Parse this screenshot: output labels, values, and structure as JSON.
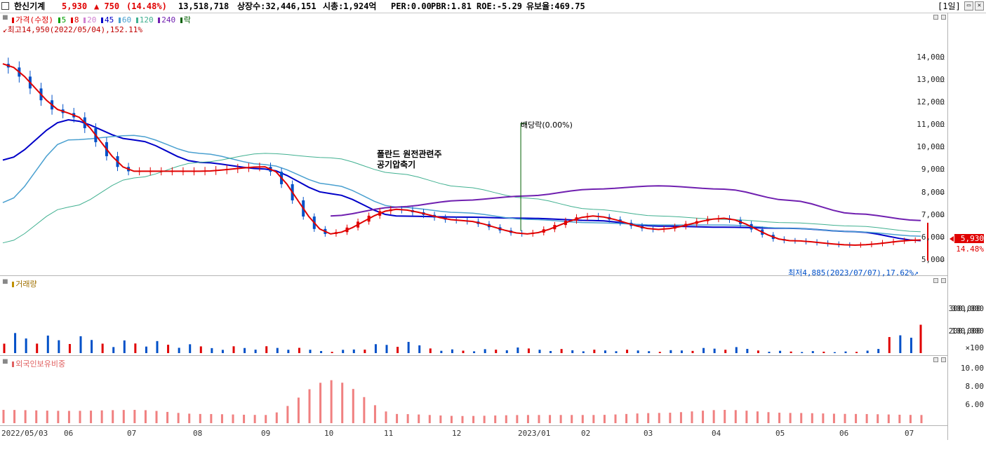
{
  "header": {
    "name": "한신기계",
    "price": "5,930",
    "change": "▲ 750",
    "change_pct": "(14.48%)",
    "volume": "13,518,718",
    "listed": "상장수:32,446,151",
    "mcap": "시총:1,924억",
    "per": "PER:0.00",
    "pbr": "PBR:1.81",
    "roe": "ROE:-5.29",
    "float": "유보율:469.75",
    "period": "[1일]",
    "colors": {
      "up": "#e00000",
      "down": "#0050c8"
    }
  },
  "legend": {
    "price": "가격(수정)",
    "ma": [
      "5",
      "8",
      "20",
      "45",
      "60",
      "120",
      "240"
    ],
    "ex": "락",
    "ma_colors": [
      "#00a000",
      "#e00000",
      "#d080d0",
      "#0000c8",
      "#4aa0d0",
      "#40b090",
      "#7020b0"
    ],
    "high_label": "최고14,950(2022/05/04),152.11%",
    "low_label": "최저4,885(2023/07/07),17.62%",
    "dividend_label": "배당락(0.00%)",
    "note_line1": "폴란드 원전관련주",
    "note_line2": "공기압축기",
    "volume_title": "거래량",
    "foreign_title": "외국인보유비중"
  },
  "price_axis": [
    "14,000",
    "13,000",
    "12,000",
    "11,000",
    "10,000",
    "9,000",
    "8,000",
    "7,000",
    "6,000",
    "5,000"
  ],
  "price_tag": {
    "price": "5,930",
    "pct": "14.48%"
  },
  "volume_axis": [
    "300,000",
    "200,000",
    "100,000",
    "×100"
  ],
  "foreign_axis": [
    "10.00",
    "8.00",
    "6.00"
  ],
  "x_axis": [
    "2022/05/03",
    "06",
    "07",
    "08",
    "09",
    "10",
    "11",
    "12",
    "2023/01",
    "02",
    "03",
    "04",
    "05",
    "06",
    "07"
  ],
  "chart_data": [
    {
      "type": "line",
      "title": "가격(수정)",
      "x": [
        "2022/05/03",
        "2022/06",
        "2022/07",
        "2022/08",
        "2022/09",
        "2022/10",
        "2022/11",
        "2022/12",
        "2023/01",
        "2023/02",
        "2023/03",
        "2023/04",
        "2023/05",
        "2023/06",
        "2023/07"
      ],
      "series": [
        {
          "name": "가격(수정)",
          "values": [
            13800,
            11600,
            9000,
            9000,
            9200,
            6200,
            7300,
            6800,
            6200,
            7000,
            6400,
            6900,
            5900,
            5700,
            5930
          ]
        },
        {
          "name": "45",
          "values": [
            9500,
            11300,
            10400,
            9400,
            9100,
            8000,
            7000,
            6950,
            6900,
            6800,
            6550,
            6500,
            6450,
            6300,
            5900
          ]
        },
        {
          "name": "60",
          "values": [
            7600,
            10400,
            10600,
            9800,
            9300,
            8400,
            7400,
            7150,
            6850,
            6700,
            6600,
            6600,
            6450,
            6300,
            6100
          ]
        },
        {
          "name": "120",
          "values": [
            5800,
            7400,
            8700,
            9400,
            9800,
            9600,
            8900,
            8300,
            7800,
            7300,
            7000,
            6850,
            6700,
            6550,
            6300
          ]
        },
        {
          "name": "240",
          "values": [
            null,
            null,
            null,
            null,
            null,
            7000,
            7400,
            7700,
            7900,
            8200,
            8350,
            8200,
            7700,
            7100,
            6800
          ]
        }
      ],
      "ylim": [
        4600,
        15400
      ],
      "high": 14950,
      "low": 4885
    },
    {
      "type": "bar",
      "title": "거래량",
      "x": [
        "2022/05/03",
        "2022/06",
        "2022/07",
        "2022/08",
        "2022/09",
        "2022/10",
        "2022/11",
        "2022/12",
        "2023/01",
        "2023/02",
        "2023/03",
        "2023/04",
        "2023/05",
        "2023/06",
        "2023/07"
      ],
      "values": [
        90000,
        65000,
        55000,
        32000,
        28000,
        12000,
        45000,
        14000,
        22000,
        14000,
        12000,
        24000,
        9000,
        6000,
        135000
      ],
      "unit": "×100",
      "ylim": [
        0,
        330000
      ]
    },
    {
      "type": "bar",
      "title": "외국인보유비중",
      "x": [
        "2022/05/03",
        "2022/06",
        "2022/07",
        "2022/08",
        "2022/09",
        "2022/10",
        "2022/11",
        "2022/12",
        "2023/01",
        "2023/02",
        "2023/03",
        "2023/04",
        "2023/05",
        "2023/06",
        "2023/07"
      ],
      "values": [
        5.8,
        5.7,
        5.8,
        5.4,
        5.3,
        8.7,
        5.4,
        5.2,
        5.3,
        5.3,
        5.5,
        5.8,
        5.5,
        5.4,
        5.3
      ],
      "ylim": [
        4.5,
        10.8
      ]
    }
  ]
}
